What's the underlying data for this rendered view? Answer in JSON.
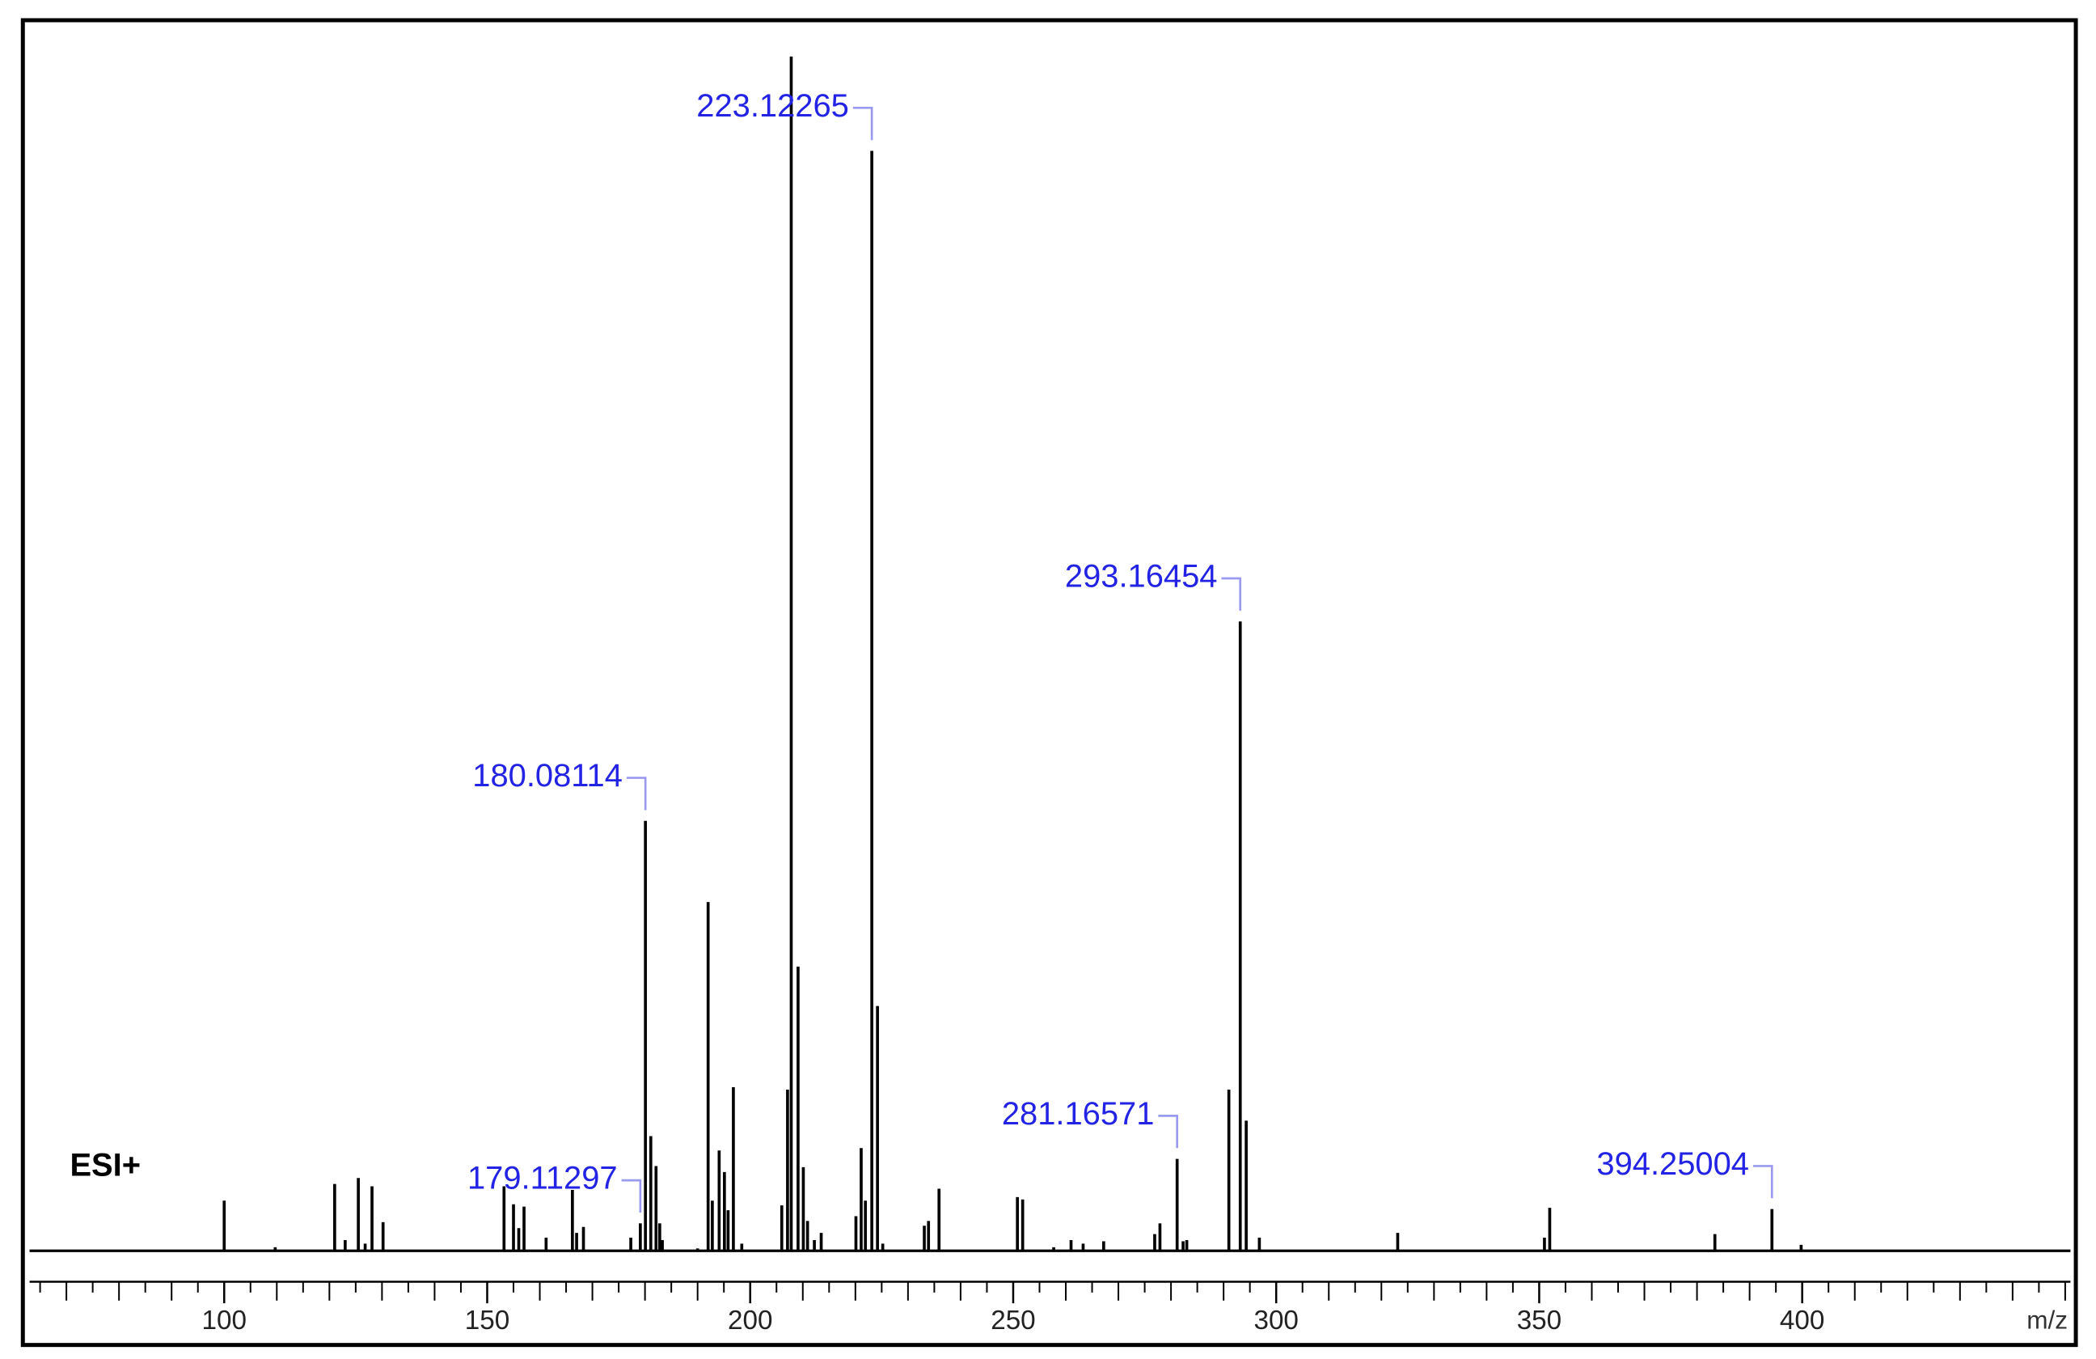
{
  "chart_data": {
    "type": "stem",
    "label": "ESI+",
    "xlabel": "m/z",
    "color": "#000000",
    "annotation_color": "#2323e6",
    "bracket_color": "#9a9af0",
    "xlim": [
      63,
      451
    ],
    "ylim": [
      0,
      100
    ],
    "xticks": [
      100,
      150,
      200,
      250,
      300,
      350,
      400
    ],
    "xminorticks": [
      65,
      70,
      75,
      80,
      85,
      90,
      95,
      105,
      110,
      115,
      120,
      125,
      130,
      135,
      140,
      145,
      155,
      160,
      165,
      170,
      175,
      180,
      185,
      190,
      195,
      205,
      210,
      215,
      220,
      225,
      230,
      235,
      240,
      245,
      255,
      260,
      265,
      270,
      275,
      280,
      285,
      290,
      295,
      305,
      310,
      315,
      320,
      325,
      330,
      335,
      340,
      345,
      355,
      360,
      365,
      370,
      375,
      380,
      385,
      390,
      395,
      405,
      410,
      415,
      420,
      425,
      430,
      435,
      440,
      445,
      450
    ],
    "x": [
      100,
      109.7,
      121,
      123,
      125.5,
      126.8,
      128.1,
      130.2,
      153.2,
      155,
      156,
      157,
      161.2,
      166.2,
      167,
      168.3,
      177.3,
      179.11297,
      180.08114,
      181.1,
      182.1,
      182.8,
      183.3,
      190,
      192,
      192.8,
      194.1,
      195.1,
      195.8,
      196.8,
      198.4,
      206,
      207.1,
      207.8,
      209.1,
      210.1,
      210.9,
      212.2,
      213.5,
      220.1,
      221.1,
      221.9,
      223.12265,
      224.2,
      225.2,
      233.1,
      233.9,
      235.9,
      250.8,
      251.8,
      257.7,
      261,
      263.3,
      267.2,
      276.9,
      277.9,
      281.16571,
      282.3,
      283,
      291,
      293.16454,
      294.3,
      296.8,
      323.1,
      351,
      352,
      383.4,
      394.25004,
      399.8
    ],
    "values": [
      4.2,
      0.3,
      5.6,
      0.9,
      6.1,
      0.6,
      5.4,
      2.4,
      5.4,
      3.9,
      1.9,
      3.7,
      1.1,
      5.1,
      1.5,
      2.0,
      1.1,
      2.3,
      36.0,
      9.6,
      7.1,
      2.3,
      0.9,
      0.2,
      29.2,
      4.2,
      8.4,
      6.6,
      3.4,
      13.7,
      0.6,
      3.8,
      13.5,
      100,
      23.8,
      7.0,
      2.5,
      0.9,
      1.5,
      2.9,
      8.6,
      4.2,
      92.1,
      20.5,
      0.6,
      2.1,
      2.5,
      5.2,
      4.5,
      4.3,
      0.3,
      0.9,
      0.6,
      0.8,
      1.4,
      2.3,
      7.7,
      0.8,
      0.9,
      13.5,
      52.7,
      10.9,
      1.1,
      1.5,
      1.1,
      3.6,
      1.4,
      3.5,
      0.5
    ],
    "annotations": [
      179.11297,
      180.08114,
      223.12265,
      281.16571,
      293.16454,
      394.25004
    ]
  }
}
